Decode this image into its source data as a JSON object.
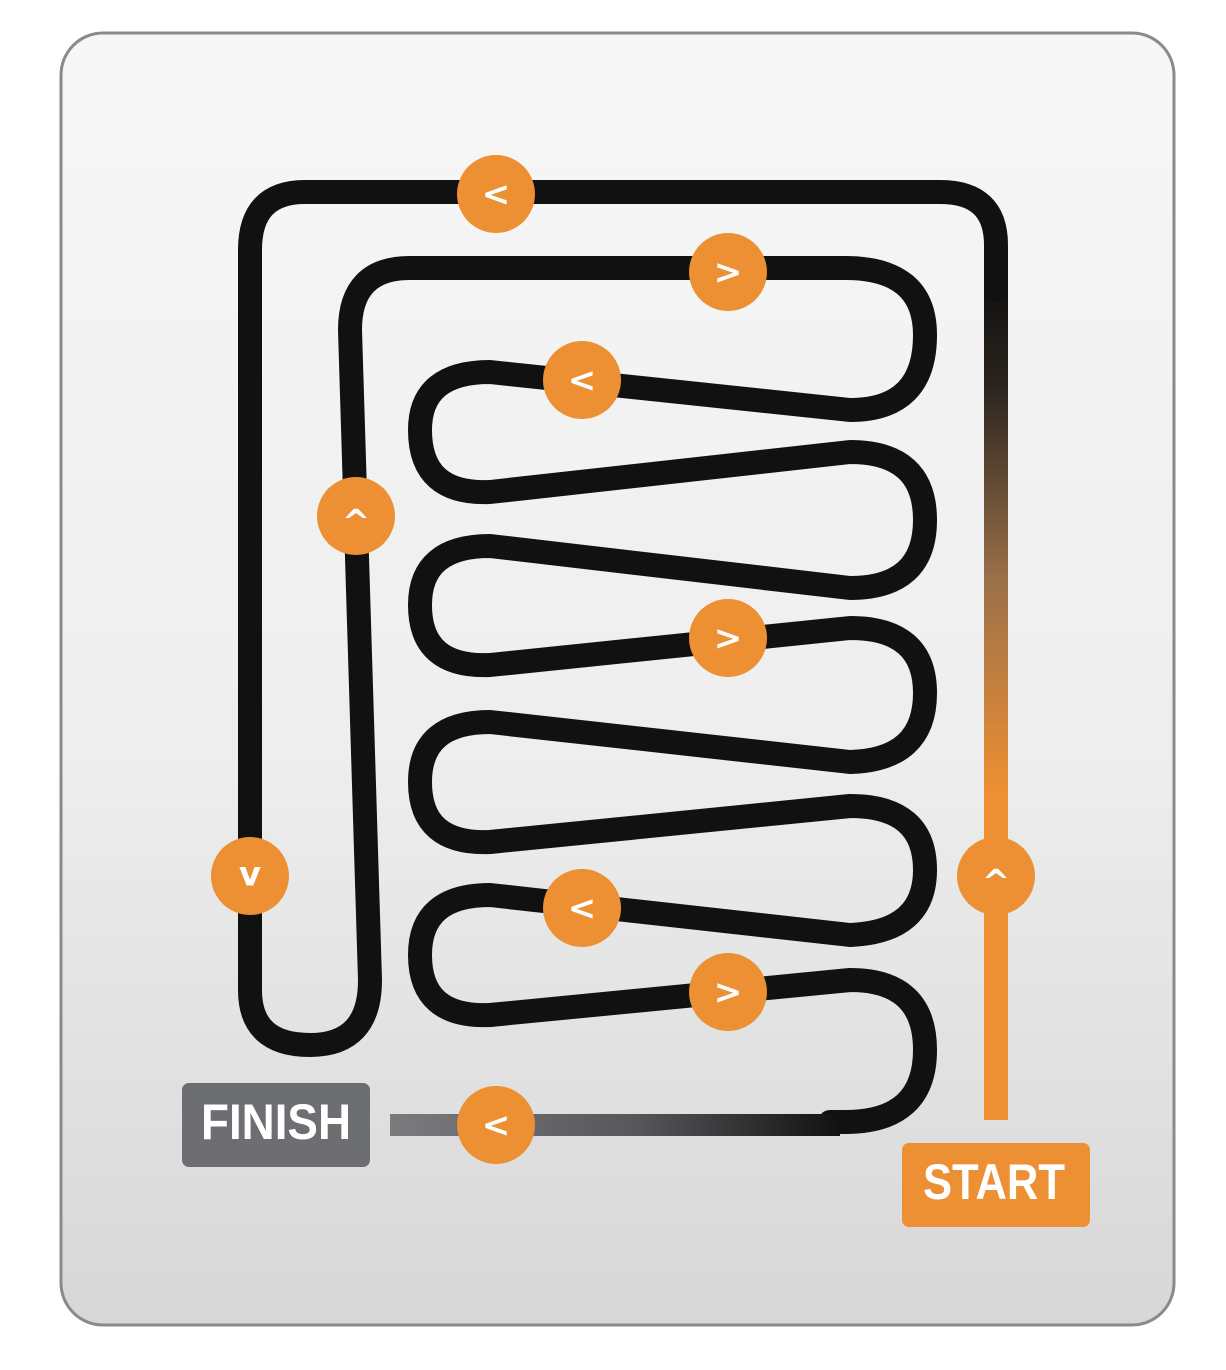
{
  "labels": {
    "start": "START",
    "finish": "FINISH"
  },
  "arrows": [
    {
      "glyph": "<",
      "direction": "left"
    },
    {
      "glyph": ">",
      "direction": "right"
    },
    {
      "glyph": "<",
      "direction": "left"
    },
    {
      "glyph": "^",
      "direction": "up"
    },
    {
      "glyph": ">",
      "direction": "right"
    },
    {
      "glyph": "v",
      "direction": "down"
    },
    {
      "glyph": "^",
      "direction": "up"
    },
    {
      "glyph": "<",
      "direction": "left"
    },
    {
      "glyph": ">",
      "direction": "right"
    },
    {
      "glyph": "<",
      "direction": "left"
    }
  ],
  "colors": {
    "path": "#111111",
    "accent": "#ed8f33",
    "finish_badge": "#6d6e71",
    "panel_border": "#8a8a8a",
    "panel_light": "#f6f6f6",
    "panel_dark": "#d9d9d9"
  }
}
